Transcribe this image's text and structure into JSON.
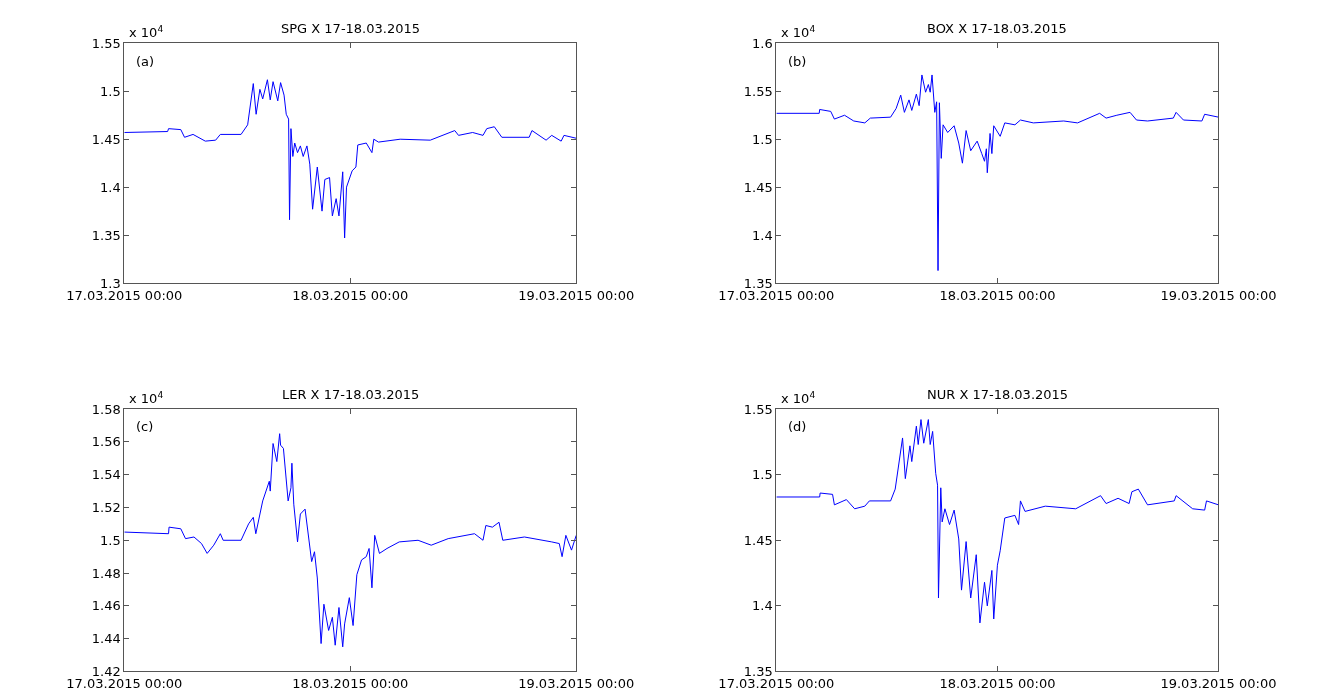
{
  "chart_data": [
    {
      "type": "line",
      "title": "SPG X 17-18.03.2015",
      "color": "#0000ff",
      "annotations": [
        "(a)",
        "x 10$^{4}$"
      ],
      "xlim": [
        "2015-03-17T00:00",
        "2015-03-19T00:00"
      ],
      "xticks": [
        {
          "value": "2015-03-17T00:00",
          "label": "17.03.2015 00:00"
        },
        {
          "value": "2015-03-18T00:00",
          "label": "18.03.2015 00:00"
        },
        {
          "value": "2015-03-19T00:00",
          "label": "19.03.2015 00:00"
        }
      ],
      "ylim": [
        1.3,
        1.55
      ],
      "yticks": [
        1.3,
        1.35,
        1.4,
        1.45,
        1.5,
        1.55
      ],
      "x": [
        "2015-03-17T00:00",
        "2015-03-17T04:36",
        "2015-03-17T04:42",
        "2015-03-17T06:00",
        "2015-03-17T06:24",
        "2015-03-17T07:18",
        "2015-03-17T08:36",
        "2015-03-17T09:42",
        "2015-03-17T10:12",
        "2015-03-17T12:24",
        "2015-03-17T13:06",
        "2015-03-17T13:42",
        "2015-03-17T14:00",
        "2015-03-17T14:24",
        "2015-03-17T14:42",
        "2015-03-17T15:12",
        "2015-03-17T15:30",
        "2015-03-17T15:48",
        "2015-03-17T16:18",
        "2015-03-17T16:36",
        "2015-03-17T16:58",
        "2015-03-17T17:12",
        "2015-03-17T17:27",
        "2015-03-17T17:33",
        "2015-03-17T17:42",
        "2015-03-17T17:54",
        "2015-03-17T18:06",
        "2015-03-17T18:24",
        "2015-03-17T18:42",
        "2015-03-17T19:00",
        "2015-03-17T19:24",
        "2015-03-17T19:42",
        "2015-03-17T20:00",
        "2015-03-17T20:30",
        "2015-03-17T21:00",
        "2015-03-17T21:18",
        "2015-03-17T21:48",
        "2015-03-17T22:06",
        "2015-03-17T22:30",
        "2015-03-17T22:48",
        "2015-03-17T23:12",
        "2015-03-17T23:24",
        "2015-03-17T23:36",
        "2015-03-18T00:12",
        "2015-03-18T00:36",
        "2015-03-18T00:48",
        "2015-03-18T01:42",
        "2015-03-18T02:18",
        "2015-03-18T02:30",
        "2015-03-18T03:00",
        "2015-03-18T05:18",
        "2015-03-18T08:30",
        "2015-03-18T11:06",
        "2015-03-18T11:30",
        "2015-03-18T13:00",
        "2015-03-18T14:06",
        "2015-03-18T14:30",
        "2015-03-18T15:18",
        "2015-03-18T16:06",
        "2015-03-18T19:00",
        "2015-03-18T19:18",
        "2015-03-18T20:48",
        "2015-03-18T21:24",
        "2015-03-18T22:24",
        "2015-03-18T22:42",
        "2015-03-19T00:00"
      ],
      "values": [
        1.457,
        1.458,
        1.461,
        1.46,
        1.452,
        1.455,
        1.448,
        1.449,
        1.455,
        1.455,
        1.465,
        1.508,
        1.476,
        1.502,
        1.492,
        1.512,
        1.491,
        1.51,
        1.49,
        1.509,
        1.496,
        1.476,
        1.471,
        1.366,
        1.461,
        1.432,
        1.446,
        1.436,
        1.443,
        1.432,
        1.443,
        1.424,
        1.377,
        1.421,
        1.375,
        1.408,
        1.41,
        1.37,
        1.388,
        1.37,
        1.416,
        1.347,
        1.4,
        1.417,
        1.421,
        1.444,
        1.446,
        1.436,
        1.45,
        1.447,
        1.45,
        1.449,
        1.459,
        1.454,
        1.457,
        1.454,
        1.461,
        1.463,
        1.452,
        1.452,
        1.459,
        1.449,
        1.454,
        1.448,
        1.454,
        1.451
      ]
    },
    {
      "type": "line",
      "title": "BOX X 17-18.03.2015",
      "color": "#0000ff",
      "annotations": [
        "(b)",
        "x 10$^{4}$"
      ],
      "xlim": [
        "2015-03-17T00:00",
        "2015-03-19T00:00"
      ],
      "xticks": [
        {
          "value": "2015-03-17T00:00",
          "label": "17.03.2015 00:00"
        },
        {
          "value": "2015-03-18T00:00",
          "label": "18.03.2015 00:00"
        },
        {
          "value": "2015-03-19T00:00",
          "label": "19.03.2015 00:00"
        }
      ],
      "ylim": [
        1.35,
        1.6
      ],
      "yticks": [
        1.35,
        1.4,
        1.45,
        1.5,
        1.55,
        1.6
      ],
      "x": [
        "2015-03-17T00:00",
        "2015-03-17T04:39",
        "2015-03-17T04:42",
        "2015-03-17T05:54",
        "2015-03-17T06:18",
        "2015-03-17T07:24",
        "2015-03-17T08:24",
        "2015-03-17T09:36",
        "2015-03-17T10:12",
        "2015-03-17T12:24",
        "2015-03-17T13:00",
        "2015-03-17T13:30",
        "2015-03-17T13:54",
        "2015-03-17T14:24",
        "2015-03-17T14:42",
        "2015-03-17T15:12",
        "2015-03-17T15:30",
        "2015-03-17T15:48",
        "2015-03-17T16:12",
        "2015-03-17T16:30",
        "2015-03-17T16:42",
        "2015-03-17T16:54",
        "2015-03-17T17:12",
        "2015-03-17T17:24",
        "2015-03-17T17:33",
        "2015-03-17T17:42",
        "2015-03-17T17:54",
        "2015-03-17T18:06",
        "2015-03-17T18:36",
        "2015-03-17T19:18",
        "2015-03-17T19:48",
        "2015-03-17T20:12",
        "2015-03-17T20:36",
        "2015-03-17T21:06",
        "2015-03-17T21:48",
        "2015-03-17T22:18",
        "2015-03-17T22:36",
        "2015-03-17T22:48",
        "2015-03-17T22:54",
        "2015-03-17T23:12",
        "2015-03-17T23:24",
        "2015-03-17T23:36",
        "2015-03-18T00:18",
        "2015-03-18T00:48",
        "2015-03-18T01:54",
        "2015-03-18T02:30",
        "2015-03-18T03:54",
        "2015-03-18T07:12",
        "2015-03-18T08:42",
        "2015-03-18T11:06",
        "2015-03-18T11:48",
        "2015-03-18T12:58",
        "2015-03-18T14:24",
        "2015-03-18T15:06",
        "2015-03-18T16:18",
        "2015-03-18T19:06",
        "2015-03-18T19:24",
        "2015-03-18T20:12",
        "2015-03-18T22:12",
        "2015-03-18T22:30",
        "2015-03-19T00:00"
      ],
      "values": [
        1.527,
        1.527,
        1.531,
        1.529,
        1.521,
        1.525,
        1.519,
        1.517,
        1.522,
        1.523,
        1.532,
        1.546,
        1.528,
        1.541,
        1.53,
        1.547,
        1.535,
        1.567,
        1.549,
        1.557,
        1.549,
        1.567,
        1.528,
        1.539,
        1.363,
        1.538,
        1.48,
        1.515,
        1.507,
        1.514,
        1.496,
        1.475,
        1.509,
        1.488,
        1.498,
        1.485,
        1.477,
        1.49,
        1.465,
        1.506,
        1.485,
        1.514,
        1.503,
        1.517,
        1.515,
        1.52,
        1.517,
        1.519,
        1.517,
        1.527,
        1.522,
        1.525,
        1.528,
        1.52,
        1.519,
        1.522,
        1.528,
        1.52,
        1.519,
        1.526,
        1.523
      ]
    },
    {
      "type": "line",
      "title": "LER X 17-18.03.2015",
      "color": "#0000ff",
      "annotations": [
        "(c)",
        "x 10$^{4}$"
      ],
      "xlim": [
        "2015-03-17T00:00",
        "2015-03-19T00:00"
      ],
      "xticks": [
        {
          "value": "2015-03-17T00:00",
          "label": "17.03.2015 00:00"
        },
        {
          "value": "2015-03-18T00:00",
          "label": "18.03.2015 00:00"
        },
        {
          "value": "2015-03-19T00:00",
          "label": "19.03.2015 00:00"
        }
      ],
      "ylim": [
        1.42,
        1.58
      ],
      "yticks": [
        1.42,
        1.44,
        1.46,
        1.48,
        1.5,
        1.52,
        1.54,
        1.56,
        1.58
      ],
      "x": [
        "2015-03-17T00:00",
        "2015-03-17T04:42",
        "2015-03-17T04:45",
        "2015-03-17T06:00",
        "2015-03-17T06:30",
        "2015-03-17T07:24",
        "2015-03-17T08:12",
        "2015-03-17T08:48",
        "2015-03-17T09:30",
        "2015-03-17T10:12",
        "2015-03-17T10:30",
        "2015-03-17T12:24",
        "2015-03-17T13:12",
        "2015-03-17T13:42",
        "2015-03-17T13:58",
        "2015-03-17T14:42",
        "2015-03-17T15:24",
        "2015-03-17T15:30",
        "2015-03-17T15:48",
        "2015-03-17T16:12",
        "2015-03-17T16:30",
        "2015-03-17T16:36",
        "2015-03-17T16:54",
        "2015-03-17T17:24",
        "2015-03-17T17:42",
        "2015-03-17T17:48",
        "2015-03-17T18:00",
        "2015-03-17T18:24",
        "2015-03-17T18:42",
        "2015-03-17T19:12",
        "2015-03-17T19:54",
        "2015-03-17T20:12",
        "2015-03-17T20:30",
        "2015-03-17T20:54",
        "2015-03-17T21:12",
        "2015-03-17T21:42",
        "2015-03-17T22:06",
        "2015-03-17T22:24",
        "2015-03-17T22:48",
        "2015-03-17T23:12",
        "2015-03-17T23:24",
        "2015-03-17T23:54",
        "2015-03-18T00:18",
        "2015-03-18T00:42",
        "2015-03-18T01:12",
        "2015-03-18T01:42",
        "2015-03-18T02:00",
        "2015-03-18T02:18",
        "2015-03-18T02:36",
        "2015-03-18T03:06",
        "2015-03-18T03:54",
        "2015-03-18T05:12",
        "2015-03-18T07:12",
        "2015-03-18T08:36",
        "2015-03-18T10:24",
        "2015-03-18T13:12",
        "2015-03-18T14:06",
        "2015-03-18T14:24",
        "2015-03-18T15:06",
        "2015-03-18T15:48",
        "2015-03-18T16:12",
        "2015-03-18T18:30",
        "2015-03-18T21:24",
        "2015-03-18T22:12",
        "2015-03-18T22:30",
        "2015-03-18T22:54",
        "2015-03-18T23:30",
        "2015-03-19T00:00"
      ],
      "values": [
        1.505,
        1.504,
        1.508,
        1.507,
        1.501,
        1.502,
        1.498,
        1.492,
        1.497,
        1.504,
        1.5,
        1.5,
        1.51,
        1.514,
        1.504,
        1.524,
        1.536,
        1.53,
        1.559,
        1.548,
        1.565,
        1.558,
        1.556,
        1.524,
        1.532,
        1.547,
        1.522,
        1.499,
        1.516,
        1.519,
        1.487,
        1.493,
        1.477,
        1.437,
        1.461,
        1.445,
        1.453,
        1.436,
        1.459,
        1.435,
        1.449,
        1.465,
        1.448,
        1.479,
        1.488,
        1.49,
        1.495,
        1.471,
        1.503,
        1.492,
        1.495,
        1.499,
        1.5,
        1.497,
        1.501,
        1.504,
        1.5,
        1.509,
        1.508,
        1.511,
        1.5,
        1.502,
        1.499,
        1.498,
        1.49,
        1.503,
        1.494,
        1.503
      ]
    },
    {
      "type": "line",
      "title": "NUR X 17-18.03.2015",
      "color": "#0000ff",
      "annotations": [
        "(d)",
        "x 10$^{4}$"
      ],
      "xlim": [
        "2015-03-17T00:00",
        "2015-03-19T00:00"
      ],
      "xticks": [
        {
          "value": "2015-03-17T00:00",
          "label": "17.03.2015 00:00"
        },
        {
          "value": "2015-03-18T00:00",
          "label": "18.03.2015 00:00"
        },
        {
          "value": "2015-03-19T00:00",
          "label": "19.03.2015 00:00"
        }
      ],
      "ylim": [
        1.35,
        1.55
      ],
      "yticks": [
        1.35,
        1.4,
        1.45,
        1.5,
        1.55
      ],
      "x": [
        "2015-03-17T00:00",
        "2015-03-17T04:42",
        "2015-03-17T04:45",
        "2015-03-17T06:06",
        "2015-03-17T06:18",
        "2015-03-17T07:36",
        "2015-03-17T08:30",
        "2015-03-17T09:36",
        "2015-03-17T10:06",
        "2015-03-17T12:24",
        "2015-03-17T12:54",
        "2015-03-17T13:42",
        "2015-03-17T14:00",
        "2015-03-17T14:30",
        "2015-03-17T14:42",
        "2015-03-17T15:12",
        "2015-03-17T15:24",
        "2015-03-17T15:42",
        "2015-03-17T16:00",
        "2015-03-17T16:30",
        "2015-03-17T16:42",
        "2015-03-17T16:58",
        "2015-03-17T17:18",
        "2015-03-17T17:30",
        "2015-03-17T17:36",
        "2015-03-17T17:51",
        "2015-03-17T18:00",
        "2015-03-17T18:18",
        "2015-03-17T18:48",
        "2015-03-17T19:18",
        "2015-03-17T19:48",
        "2015-03-17T20:06",
        "2015-03-17T20:36",
        "2015-03-17T21:06",
        "2015-03-17T21:42",
        "2015-03-17T22:06",
        "2015-03-17T22:36",
        "2015-03-17T22:54",
        "2015-03-17T23:24",
        "2015-03-17T23:36",
        "2015-03-18T00:00",
        "2015-03-18T00:18",
        "2015-03-18T00:48",
        "2015-03-18T01:54",
        "2015-03-18T02:18",
        "2015-03-18T02:30",
        "2015-03-18T03:00",
        "2015-03-18T05:12",
        "2015-03-18T08:30",
        "2015-03-18T11:12",
        "2015-03-18T11:48",
        "2015-03-18T13:06",
        "2015-03-18T14:18",
        "2015-03-18T14:36",
        "2015-03-18T15:18",
        "2015-03-18T16:18",
        "2015-03-18T19:12",
        "2015-03-18T19:24",
        "2015-03-18T21:12",
        "2015-03-18T22:30",
        "2015-03-18T22:42",
        "2015-03-19T00:00"
      ],
      "values": [
        1.483,
        1.483,
        1.486,
        1.485,
        1.477,
        1.481,
        1.474,
        1.476,
        1.48,
        1.48,
        1.489,
        1.528,
        1.497,
        1.522,
        1.51,
        1.537,
        1.523,
        1.542,
        1.524,
        1.542,
        1.523,
        1.533,
        1.501,
        1.492,
        1.406,
        1.49,
        1.464,
        1.474,
        1.462,
        1.473,
        1.451,
        1.412,
        1.449,
        1.406,
        1.439,
        1.387,
        1.418,
        1.4,
        1.427,
        1.39,
        1.431,
        1.442,
        1.467,
        1.469,
        1.462,
        1.48,
        1.472,
        1.476,
        1.474,
        1.484,
        1.478,
        1.482,
        1.478,
        1.487,
        1.489,
        1.477,
        1.48,
        1.484,
        1.474,
        1.473,
        1.48,
        1.477
      ]
    }
  ]
}
